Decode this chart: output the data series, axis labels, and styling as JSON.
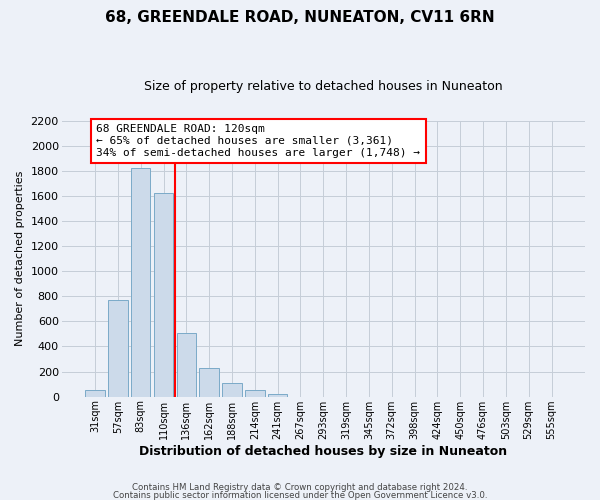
{
  "title": "68, GREENDALE ROAD, NUNEATON, CV11 6RN",
  "subtitle": "Size of property relative to detached houses in Nuneaton",
  "xlabel": "Distribution of detached houses by size in Nuneaton",
  "ylabel": "Number of detached properties",
  "bar_labels": [
    "31sqm",
    "57sqm",
    "83sqm",
    "110sqm",
    "136sqm",
    "162sqm",
    "188sqm",
    "214sqm",
    "241sqm",
    "267sqm",
    "293sqm",
    "319sqm",
    "345sqm",
    "372sqm",
    "398sqm",
    "424sqm",
    "450sqm",
    "476sqm",
    "503sqm",
    "529sqm",
    "555sqm"
  ],
  "bar_values": [
    50,
    770,
    1820,
    1620,
    510,
    230,
    105,
    55,
    20,
    0,
    0,
    0,
    0,
    0,
    0,
    0,
    0,
    0,
    0,
    0,
    0
  ],
  "bar_color": "#ccdaea",
  "bar_edgecolor": "#7aaac8",
  "vline_x": 3.5,
  "vline_color": "red",
  "annotation_text": "68 GREENDALE ROAD: 120sqm\n← 65% of detached houses are smaller (3,361)\n34% of semi-detached houses are larger (1,748) →",
  "annotation_box_edgecolor": "red",
  "annotation_box_facecolor": "white",
  "ylim": [
    0,
    2200
  ],
  "yticks": [
    0,
    200,
    400,
    600,
    800,
    1000,
    1200,
    1400,
    1600,
    1800,
    2000,
    2200
  ],
  "footer1": "Contains HM Land Registry data © Crown copyright and database right 2024.",
  "footer2": "Contains public sector information licensed under the Open Government Licence v3.0.",
  "background_color": "#edf1f8",
  "grid_color": "#c5cdd8",
  "title_fontsize": 11,
  "subtitle_fontsize": 9,
  "ylabel_fontsize": 8,
  "xlabel_fontsize": 9,
  "annotation_fontsize": 8,
  "ytick_fontsize": 8,
  "xtick_fontsize": 7
}
